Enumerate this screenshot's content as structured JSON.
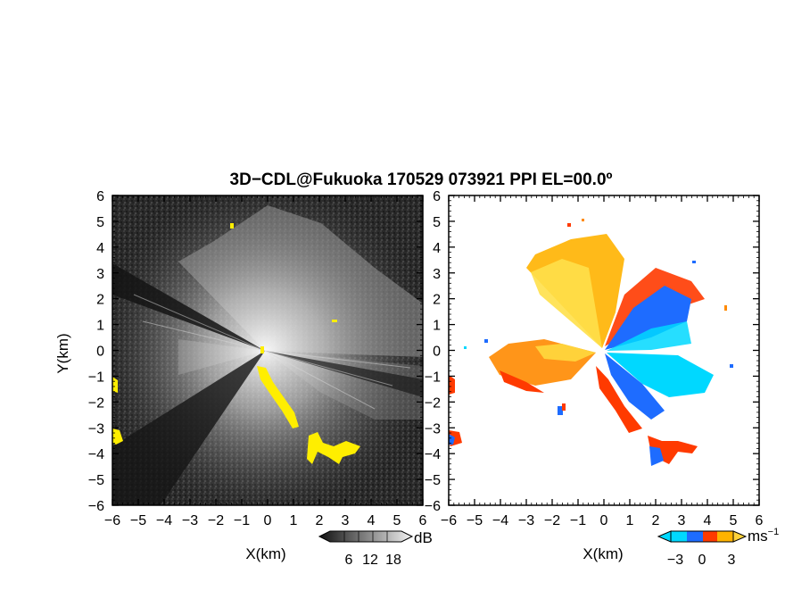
{
  "title": "3D−CDL@Fukuoka 170529 073921 PPI EL=00.0º",
  "chart_data": [
    {
      "type": "heatmap",
      "panel": "left",
      "xlabel": "X(km)",
      "ylabel": "Y(km)",
      "xlim": [
        -6,
        6
      ],
      "ylim": [
        -6,
        6
      ],
      "x_ticks": [
        "−6",
        "−5",
        "−4",
        "−3",
        "−2",
        "−1",
        "0",
        "1",
        "2",
        "3",
        "4",
        "5",
        "6"
      ],
      "y_ticks": [
        "6",
        "5",
        "4",
        "3",
        "2",
        "1",
        "0",
        "−1",
        "−2",
        "−3",
        "−4",
        "−5",
        "−6"
      ],
      "colorbar": {
        "unit": "dB",
        "ticks": [
          "6",
          "12",
          "18"
        ],
        "colormap": "grayscale"
      },
      "highlight_color": "#ffee00",
      "background_color": "#2b2b2b"
    },
    {
      "type": "heatmap",
      "panel": "right",
      "xlabel": "X(km)",
      "xlim": [
        -6,
        6
      ],
      "ylim": [
        -6,
        6
      ],
      "x_ticks": [
        "−6",
        "−5",
        "−4",
        "−3",
        "−2",
        "−1",
        "0",
        "1",
        "2",
        "3",
        "4",
        "5",
        "6"
      ],
      "y_ticks": [
        "6",
        "5",
        "4",
        "3",
        "2",
        "1",
        "0",
        "−1",
        "−2",
        "−3",
        "−4",
        "−5",
        "−6"
      ],
      "colorbar": {
        "unit": "ms",
        "unit_exponent": "−1",
        "ticks": [
          "−3",
          "0",
          "3"
        ],
        "colors": [
          "#00d8ff",
          "#1e6cff",
          "#ff3a00",
          "#ffb300"
        ]
      },
      "background_color": "#ffffff"
    }
  ]
}
